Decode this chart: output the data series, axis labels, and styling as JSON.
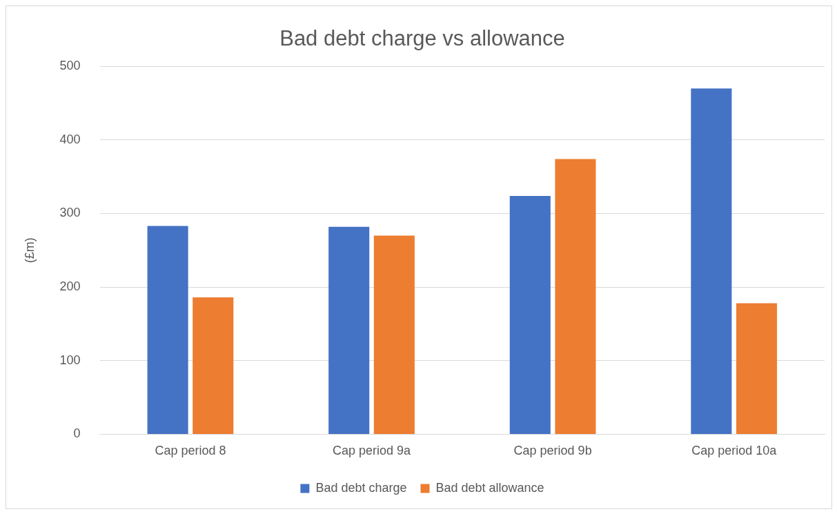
{
  "chart_data": {
    "type": "bar",
    "title": "Bad debt charge vs allowance",
    "ylabel": "(£m)",
    "categories": [
      "Cap period 8",
      "Cap period 9a",
      "Cap period 9b",
      "Cap period 10a"
    ],
    "series": [
      {
        "name": "Bad debt charge",
        "color": "#4472c4",
        "values": [
          283,
          282,
          324,
          470
        ]
      },
      {
        "name": "Bad debt allowance",
        "color": "#ed7d31",
        "values": [
          186,
          270,
          374,
          178
        ]
      }
    ],
    "ylim": [
      0,
      500
    ],
    "yticks": [
      0,
      100,
      200,
      300,
      400,
      500
    ],
    "grid": "y",
    "legend": "bottom"
  }
}
